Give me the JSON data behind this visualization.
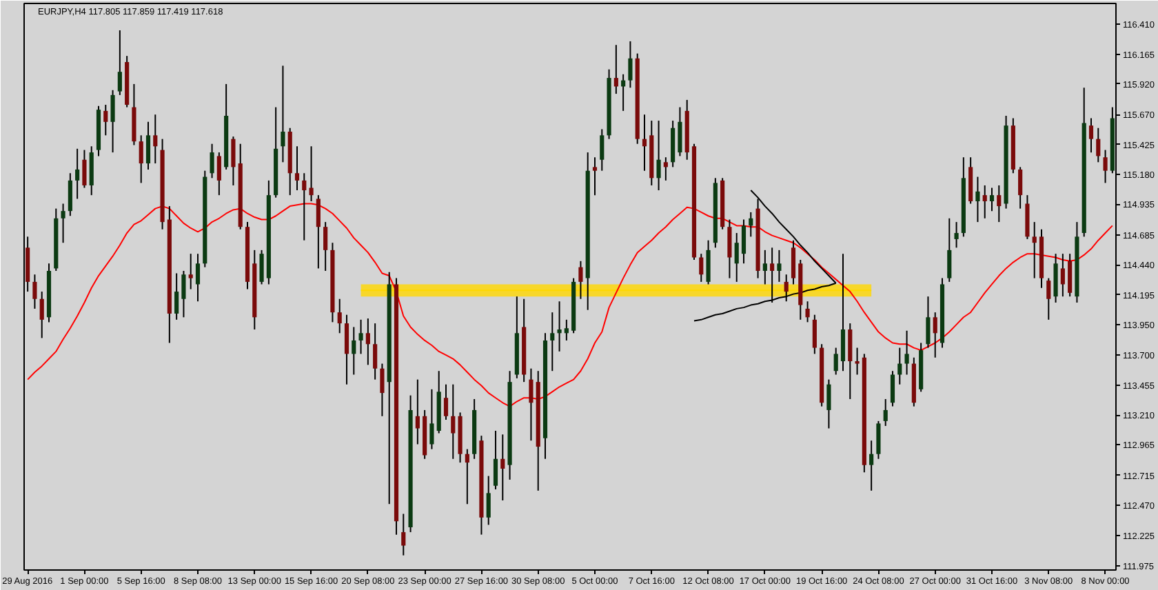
{
  "chart_data": {
    "type": "candlestick",
    "title": "EURJPY,H4 117.805 117.859 117.419 117.618",
    "categories": [
      "29 Aug 2016",
      null,
      null,
      null,
      null,
      null,
      null,
      null,
      "1 Sep 00:00",
      null,
      null,
      null,
      null,
      null,
      null,
      null,
      "5 Sep 16:00",
      null,
      null,
      null,
      null,
      null,
      null,
      null,
      "8 Sep 08:00",
      null,
      null,
      null,
      null,
      null,
      null,
      null,
      "13 Sep 00:00",
      null,
      null,
      null,
      null,
      null,
      null,
      null,
      "15 Sep 16:00",
      null,
      null,
      null,
      null,
      null,
      null,
      null,
      "20 Sep 08:00",
      null,
      null,
      null,
      null,
      null,
      null,
      null,
      "23 Sep 00:00",
      null,
      null,
      null,
      null,
      null,
      null,
      null,
      "27 Sep 16:00",
      null,
      null,
      null,
      null,
      null,
      null,
      null,
      "30 Sep 08:00",
      null,
      null,
      null,
      null,
      null,
      null,
      null,
      "5 Oct 00:00",
      null,
      null,
      null,
      null,
      null,
      null,
      null,
      "7 Oct 16:00",
      null,
      null,
      null,
      null,
      null,
      null,
      null,
      "12 Oct 08:00",
      null,
      null,
      null,
      null,
      null,
      null,
      null,
      "17 Oct 00:00",
      null,
      null,
      null,
      null,
      null,
      null,
      null,
      "19 Oct 16:00",
      null,
      null,
      null,
      null,
      null,
      null,
      null,
      "24 Oct 08:00",
      null,
      null,
      null,
      null,
      null,
      null,
      null,
      "27 Oct 00:00",
      null,
      null,
      null,
      null,
      null,
      null,
      null,
      "31 Oct 16:00",
      null,
      null,
      null,
      null,
      null,
      null,
      null,
      "3 Nov 08:00",
      null,
      null,
      null,
      null,
      null,
      null,
      null,
      "8 Nov 00:00",
      null
    ],
    "ohlc": [
      [
        114.58,
        114.67,
        114.22,
        114.3
      ],
      [
        114.3,
        114.36,
        114.08,
        114.16
      ],
      [
        114.16,
        114.22,
        113.84,
        113.99
      ],
      [
        114.01,
        114.45,
        113.97,
        114.39
      ],
      [
        114.41,
        114.9,
        114.39,
        114.82
      ],
      [
        114.82,
        114.94,
        114.62,
        114.88
      ],
      [
        114.88,
        115.19,
        114.84,
        115.13
      ],
      [
        115.13,
        115.39,
        114.98,
        115.22
      ],
      [
        115.3,
        115.38,
        115.07,
        115.09
      ],
      [
        115.09,
        115.41,
        115.01,
        115.36
      ],
      [
        115.38,
        115.74,
        115.33,
        115.71
      ],
      [
        115.7,
        115.75,
        115.5,
        115.61
      ],
      [
        115.61,
        115.87,
        115.36,
        115.83
      ],
      [
        115.86,
        116.36,
        115.83,
        116.02
      ],
      [
        116.1,
        116.15,
        115.73,
        115.75
      ],
      [
        115.73,
        115.92,
        115.42,
        115.45
      ],
      [
        115.45,
        115.5,
        115.11,
        115.27
      ],
      [
        115.27,
        115.61,
        115.22,
        115.5
      ],
      [
        115.5,
        115.67,
        115.27,
        115.41
      ],
      [
        115.38,
        115.47,
        114.73,
        114.79
      ],
      [
        114.81,
        114.92,
        113.8,
        114.04
      ],
      [
        114.04,
        114.37,
        113.99,
        114.22
      ],
      [
        114.16,
        114.39,
        114.01,
        114.36
      ],
      [
        114.36,
        114.53,
        114.24,
        114.33
      ],
      [
        114.28,
        114.53,
        114.14,
        114.45
      ],
      [
        114.45,
        115.21,
        114.42,
        115.16
      ],
      [
        115.19,
        115.43,
        115.15,
        115.36
      ],
      [
        115.33,
        115.36,
        115.01,
        115.13
      ],
      [
        115.24,
        115.92,
        115.22,
        115.66
      ],
      [
        115.47,
        115.49,
        115.09,
        115.24
      ],
      [
        115.27,
        115.43,
        114.73,
        114.75
      ],
      [
        114.75,
        114.79,
        114.24,
        114.3
      ],
      [
        114.45,
        114.56,
        113.91,
        114.01
      ],
      [
        114.3,
        114.56,
        114.28,
        114.53
      ],
      [
        114.33,
        115.13,
        114.28,
        115.01
      ],
      [
        115.01,
        115.73,
        114.99,
        115.39
      ],
      [
        115.41,
        116.07,
        115.28,
        115.53
      ],
      [
        115.53,
        115.56,
        115.01,
        115.19
      ],
      [
        115.19,
        115.41,
        115.05,
        115.13
      ],
      [
        115.13,
        115.19,
        114.64,
        115.05
      ],
      [
        115.07,
        115.41,
        114.96,
        115.01
      ],
      [
        114.98,
        115.01,
        114.41,
        114.75
      ],
      [
        114.75,
        114.79,
        114.39,
        114.56
      ],
      [
        114.56,
        114.62,
        113.97,
        114.05
      ],
      [
        114.05,
        114.16,
        113.88,
        113.96
      ],
      [
        113.96,
        114.03,
        113.46,
        113.71
      ],
      [
        113.71,
        113.93,
        113.54,
        113.82
      ],
      [
        113.82,
        113.99,
        113.71,
        113.88
      ],
      [
        113.88,
        114.0,
        113.62,
        113.79
      ],
      [
        113.79,
        113.96,
        113.5,
        113.59
      ],
      [
        113.59,
        113.63,
        113.2,
        113.39
      ],
      [
        113.48,
        114.38,
        112.48,
        114.28
      ],
      [
        114.28,
        114.33,
        112.23,
        112.34
      ],
      [
        112.25,
        112.4,
        112.06,
        112.14
      ],
      [
        112.29,
        113.37,
        112.25,
        113.25
      ],
      [
        113.2,
        113.5,
        112.97,
        113.1
      ],
      [
        113.2,
        113.25,
        112.85,
        112.88
      ],
      [
        112.97,
        113.42,
        112.93,
        113.14
      ],
      [
        113.08,
        113.57,
        113.06,
        113.4
      ],
      [
        113.35,
        113.46,
        113.17,
        113.2
      ],
      [
        113.2,
        113.46,
        112.85,
        113.06
      ],
      [
        113.2,
        113.23,
        112.82,
        112.89
      ],
      [
        112.89,
        112.93,
        112.48,
        112.82
      ],
      [
        112.89,
        113.34,
        112.85,
        113.25
      ],
      [
        113.0,
        113.04,
        112.23,
        112.37
      ],
      [
        112.37,
        112.71,
        112.31,
        112.57
      ],
      [
        112.63,
        113.08,
        112.6,
        112.85
      ],
      [
        112.85,
        113.05,
        112.51,
        112.77
      ],
      [
        112.8,
        113.57,
        112.68,
        113.48
      ],
      [
        113.54,
        114.18,
        113.51,
        113.88
      ],
      [
        113.93,
        114.16,
        113.48,
        113.54
      ],
      [
        113.5,
        113.59,
        113.0,
        113.31
      ],
      [
        113.48,
        113.57,
        112.59,
        112.95
      ],
      [
        113.02,
        113.88,
        112.85,
        113.82
      ],
      [
        113.82,
        114.05,
        113.57,
        113.88
      ],
      [
        113.88,
        114.14,
        113.73,
        113.91
      ],
      [
        113.88,
        113.99,
        113.82,
        113.92
      ],
      [
        113.9,
        114.33,
        113.88,
        114.3
      ],
      [
        114.42,
        114.47,
        114.16,
        114.3
      ],
      [
        114.33,
        115.36,
        114.07,
        115.21
      ],
      [
        115.24,
        115.32,
        115.01,
        115.21
      ],
      [
        115.3,
        115.55,
        115.21,
        115.5
      ],
      [
        115.5,
        116.04,
        115.47,
        115.97
      ],
      [
        115.97,
        116.24,
        115.84,
        115.9
      ],
      [
        115.9,
        116.0,
        115.7,
        115.95
      ],
      [
        115.95,
        116.27,
        115.89,
        116.13
      ],
      [
        116.13,
        116.17,
        115.43,
        115.47
      ],
      [
        115.47,
        115.67,
        115.21,
        115.41
      ],
      [
        115.5,
        115.62,
        115.09,
        115.15
      ],
      [
        115.15,
        115.62,
        115.05,
        115.3
      ],
      [
        115.28,
        115.32,
        115.13,
        115.24
      ],
      [
        115.28,
        115.62,
        115.24,
        115.56
      ],
      [
        115.36,
        115.73,
        115.33,
        115.61
      ],
      [
        115.7,
        115.79,
        115.3,
        115.36
      ],
      [
        115.41,
        115.43,
        114.48,
        114.5
      ],
      [
        114.5,
        114.53,
        114.3,
        114.36
      ],
      [
        114.3,
        114.64,
        114.28,
        114.56
      ],
      [
        114.62,
        115.15,
        114.58,
        115.11
      ],
      [
        115.13,
        115.15,
        114.73,
        114.75
      ],
      [
        114.75,
        114.81,
        114.33,
        114.5
      ],
      [
        114.45,
        114.7,
        114.3,
        114.62
      ],
      [
        114.53,
        114.81,
        114.45,
        114.76
      ],
      [
        114.76,
        114.87,
        114.67,
        114.82
      ],
      [
        114.9,
        114.98,
        114.33,
        114.39
      ],
      [
        114.39,
        114.56,
        114.28,
        114.45
      ],
      [
        114.45,
        114.58,
        114.13,
        114.39
      ],
      [
        114.39,
        114.56,
        114.3,
        114.45
      ],
      [
        114.3,
        114.36,
        114.14,
        114.22
      ],
      [
        114.58,
        114.64,
        114.28,
        114.33
      ],
      [
        114.45,
        114.48,
        113.99,
        114.11
      ],
      [
        114.08,
        114.14,
        113.97,
        114.01
      ],
      [
        113.99,
        114.03,
        113.71,
        113.76
      ],
      [
        113.76,
        113.79,
        113.28,
        113.31
      ],
      [
        113.25,
        113.5,
        113.1,
        113.46
      ],
      [
        113.57,
        113.76,
        113.54,
        113.71
      ],
      [
        113.65,
        114.53,
        113.57,
        113.91
      ],
      [
        113.91,
        113.96,
        113.34,
        113.65
      ],
      [
        113.65,
        113.76,
        113.54,
        113.63
      ],
      [
        113.68,
        113.71,
        112.74,
        112.8
      ],
      [
        112.8,
        113.0,
        112.59,
        112.89
      ],
      [
        112.89,
        113.16,
        112.85,
        113.14
      ],
      [
        113.16,
        113.34,
        113.12,
        113.25
      ],
      [
        113.31,
        113.57,
        113.28,
        113.54
      ],
      [
        113.54,
        113.76,
        113.46,
        113.63
      ],
      [
        113.63,
        113.9,
        113.54,
        113.71
      ],
      [
        113.63,
        113.68,
        113.28,
        113.31
      ],
      [
        113.42,
        113.8,
        113.4,
        113.74
      ],
      [
        113.79,
        114.18,
        113.76,
        114.01
      ],
      [
        114.01,
        114.05,
        113.68,
        113.88
      ],
      [
        113.8,
        114.33,
        113.76,
        114.28
      ],
      [
        114.33,
        114.82,
        114.3,
        114.56
      ],
      [
        114.65,
        114.79,
        114.58,
        114.7
      ],
      [
        114.7,
        115.32,
        114.67,
        115.15
      ],
      [
        115.24,
        115.32,
        114.94,
        114.96
      ],
      [
        114.96,
        115.16,
        114.79,
        115.04
      ],
      [
        115.01,
        115.09,
        114.82,
        114.96
      ],
      [
        114.96,
        115.07,
        114.88,
        115.01
      ],
      [
        115.01,
        115.09,
        114.79,
        114.92
      ],
      [
        114.94,
        115.66,
        114.9,
        115.58
      ],
      [
        115.58,
        115.64,
        115.19,
        115.22
      ],
      [
        115.22,
        115.24,
        114.9,
        115.01
      ],
      [
        114.94,
        115.01,
        114.65,
        114.67
      ],
      [
        114.67,
        114.79,
        114.33,
        114.62
      ],
      [
        114.67,
        114.73,
        114.25,
        114.33
      ],
      [
        114.31,
        114.33,
        113.99,
        114.16
      ],
      [
        114.18,
        114.53,
        114.13,
        114.45
      ],
      [
        114.41,
        114.53,
        114.18,
        114.28
      ],
      [
        114.47,
        114.53,
        114.18,
        114.21
      ],
      [
        114.18,
        114.79,
        114.13,
        114.67
      ],
      [
        114.7,
        115.89,
        114.67,
        115.6
      ],
      [
        115.58,
        115.64,
        115.36,
        115.47
      ],
      [
        115.47,
        115.56,
        115.28,
        115.33
      ],
      [
        115.32,
        115.38,
        115.11,
        115.21
      ],
      [
        115.21,
        115.73,
        115.19,
        115.64
      ]
    ],
    "colors": [
      "#7a0a0a",
      "#7a0a0a",
      "#7a0a0a",
      "#0b3a12",
      "#0b3a12",
      "#0b3a12",
      "#0b3a12",
      "#0b3a12",
      "#7a0a0a",
      "#0b3a12",
      "#0b3a12",
      "#7a0a0a",
      "#0b3a12",
      "#0b3a12",
      "#7a0a0a",
      "#7a0a0a",
      "#7a0a0a",
      "#0b3a12",
      "#7a0a0a",
      "#7a0a0a",
      "#7a0a0a",
      "#0b3a12",
      "#0b3a12",
      "#7a0a0a",
      "#0b3a12",
      "#0b3a12",
      "#0b3a12",
      "#7a0a0a",
      "#0b3a12",
      "#7a0a0a",
      "#7a0a0a",
      "#7a0a0a",
      "#7a0a0a",
      "#0b3a12",
      "#0b3a12",
      "#0b3a12",
      "#0b3a12",
      "#7a0a0a",
      "#7a0a0a",
      "#7a0a0a",
      "#7a0a0a",
      "#7a0a0a",
      "#7a0a0a",
      "#7a0a0a",
      "#7a0a0a",
      "#7a0a0a",
      "#0b3a12",
      "#0b3a12",
      "#7a0a0a",
      "#7a0a0a",
      "#7a0a0a",
      "#0b3a12",
      "#7a0a0a",
      "#7a0a0a",
      "#0b3a12",
      "#7a0a0a",
      "#7a0a0a",
      "#0b3a12",
      "#0b3a12",
      "#7a0a0a",
      "#7a0a0a",
      "#7a0a0a",
      "#7a0a0a",
      "#0b3a12",
      "#7a0a0a",
      "#0b3a12",
      "#0b3a12",
      "#7a0a0a",
      "#0b3a12",
      "#0b3a12",
      "#7a0a0a",
      "#7a0a0a",
      "#7a0a0a",
      "#0b3a12",
      "#0b3a12",
      "#0b3a12",
      "#0b3a12",
      "#0b3a12",
      "#7a0a0a",
      "#0b3a12",
      "#7a0a0a",
      "#0b3a12",
      "#0b3a12",
      "#7a0a0a",
      "#0b3a12",
      "#0b3a12",
      "#7a0a0a",
      "#7a0a0a",
      "#7a0a0a",
      "#0b3a12",
      "#7a0a0a",
      "#0b3a12",
      "#0b3a12",
      "#7a0a0a",
      "#7a0a0a",
      "#7a0a0a",
      "#0b3a12",
      "#0b3a12",
      "#7a0a0a",
      "#7a0a0a",
      "#0b3a12",
      "#0b3a12",
      "#0b3a12",
      "#7a0a0a",
      "#0b3a12",
      "#7a0a0a",
      "#0b3a12",
      "#7a0a0a",
      "#7a0a0a",
      "#7a0a0a",
      "#7a0a0a",
      "#7a0a0a",
      "#7a0a0a",
      "#0b3a12",
      "#0b3a12",
      "#0b3a12",
      "#7a0a0a",
      "#7a0a0a",
      "#7a0a0a",
      "#0b3a12",
      "#0b3a12",
      "#0b3a12",
      "#0b3a12",
      "#0b3a12",
      "#0b3a12",
      "#7a0a0a",
      "#0b3a12",
      "#0b3a12",
      "#7a0a0a",
      "#0b3a12",
      "#0b3a12",
      "#0b3a12",
      "#0b3a12",
      "#7a0a0a",
      "#0b3a12",
      "#7a0a0a",
      "#0b3a12",
      "#7a0a0a",
      "#0b3a12",
      "#7a0a0a",
      "#7a0a0a",
      "#7a0a0a",
      "#7a0a0a",
      "#7a0a0a",
      "#7a0a0a",
      "#0b3a12",
      "#7a0a0a",
      "#7a0a0a",
      "#0b3a12",
      "#0b3a12",
      "#7a0a0a",
      "#7a0a0a",
      "#7a0a0a",
      "#0b3a12"
    ],
    "series": [
      {
        "type": "line",
        "color": "#ffd700",
        "values": [
          null,
          null,
          null,
          null,
          null,
          null,
          null,
          null,
          null,
          null,
          null,
          null,
          null,
          null,
          null,
          null,
          null,
          null,
          null,
          null,
          null,
          null,
          null,
          null,
          null,
          null,
          null,
          null,
          null,
          null,
          null,
          null,
          null,
          null,
          null,
          null,
          null,
          null,
          null,
          null,
          null,
          null,
          null,
          null,
          null,
          null,
          null,
          114.23,
          114.23,
          114.23,
          114.23,
          114.23,
          114.23,
          114.23,
          114.23,
          114.23,
          114.23,
          114.23,
          114.23,
          114.23,
          114.23,
          114.23,
          114.23,
          114.23,
          114.23,
          114.23,
          114.23,
          114.23,
          114.23,
          114.23,
          114.23,
          114.23,
          114.23,
          114.23,
          114.23,
          114.23,
          114.23,
          114.23,
          114.23,
          114.23,
          114.23,
          114.23,
          114.23,
          114.23,
          114.23,
          114.23,
          114.23,
          114.23,
          114.23,
          114.23,
          114.23,
          114.23,
          114.23,
          114.23,
          114.23,
          114.23,
          114.23,
          114.23,
          114.23,
          114.23,
          114.23,
          114.23,
          114.23,
          114.23,
          114.23,
          114.23,
          114.23,
          114.23,
          114.23,
          114.23,
          114.23,
          114.23,
          114.23,
          114.23,
          114.23,
          114.23,
          114.23,
          114.23,
          114.23,
          114.23,
          null,
          null,
          null,
          null,
          null,
          null,
          null,
          null,
          null,
          null,
          null,
          null,
          null,
          null,
          null,
          null,
          null,
          null,
          null,
          null,
          null,
          null,
          null,
          null,
          null,
          null,
          null,
          null,
          null,
          null,
          null,
          null,
          null,
          null
        ],
        "lower": [
          null,
          null,
          null,
          null,
          null,
          null,
          null,
          null,
          null,
          null,
          null,
          null,
          null,
          null,
          null,
          null,
          null,
          null,
          null,
          null,
          null,
          null,
          null,
          null,
          null,
          null,
          null,
          null,
          null,
          null,
          null,
          null,
          null,
          null,
          null,
          null,
          null,
          null,
          null,
          null,
          null,
          null,
          null,
          null,
          null,
          null,
          null,
          114.18,
          114.18,
          114.18,
          114.18,
          114.18,
          114.18,
          114.18,
          114.18,
          114.18,
          114.18,
          114.18,
          114.18,
          114.18,
          114.18,
          114.18,
          114.18,
          114.18,
          114.18,
          114.18,
          114.18,
          114.18,
          114.18,
          114.18,
          114.18,
          114.18,
          114.18,
          114.18,
          114.18,
          114.18,
          114.18,
          114.18,
          114.18,
          114.18,
          114.18,
          114.18,
          114.18,
          114.18,
          114.18,
          114.18,
          114.18,
          114.18,
          114.18,
          114.18,
          114.18,
          114.18,
          114.18,
          114.18,
          114.18,
          114.18,
          114.18,
          114.18,
          114.18,
          114.18,
          114.18,
          114.18,
          114.18,
          114.18,
          114.18,
          114.18,
          114.18,
          114.18,
          114.18,
          114.18,
          114.18,
          114.18,
          114.18,
          114.18,
          114.18,
          114.18,
          114.18,
          114.18,
          114.18,
          114.18,
          null,
          null,
          null,
          null,
          null,
          null,
          null,
          null,
          null,
          null,
          null,
          null,
          null,
          null,
          null,
          null,
          null,
          null,
          null,
          null,
          null,
          null,
          null,
          null,
          null,
          null,
          null,
          null,
          null,
          null,
          null,
          null,
          null,
          null
        ],
        "upper": [
          null,
          null,
          null,
          null,
          null,
          null,
          null,
          null,
          null,
          null,
          null,
          null,
          null,
          null,
          null,
          null,
          null,
          null,
          null,
          null,
          null,
          null,
          null,
          null,
          null,
          null,
          null,
          null,
          null,
          null,
          null,
          null,
          null,
          null,
          null,
          null,
          null,
          null,
          null,
          null,
          null,
          null,
          null,
          null,
          null,
          null,
          null,
          114.28,
          114.28,
          114.28,
          114.28,
          114.28,
          114.28,
          114.28,
          114.28,
          114.28,
          114.28,
          114.28,
          114.28,
          114.28,
          114.28,
          114.28,
          114.28,
          114.28,
          114.28,
          114.28,
          114.28,
          114.28,
          114.28,
          114.28,
          114.28,
          114.28,
          114.28,
          114.28,
          114.28,
          114.28,
          114.28,
          114.28,
          114.28,
          114.28,
          114.28,
          114.28,
          114.28,
          114.28,
          114.28,
          114.28,
          114.28,
          114.28,
          114.28,
          114.28,
          114.28,
          114.28,
          114.28,
          114.28,
          114.28,
          114.28,
          114.28,
          114.28,
          114.28,
          114.28,
          114.28,
          114.28,
          114.28,
          114.28,
          114.28,
          114.28,
          114.28,
          114.28,
          114.28,
          114.28,
          114.28,
          114.28,
          114.28,
          114.28,
          114.28,
          114.28,
          114.28,
          114.28,
          114.28,
          114.28,
          null,
          null,
          null,
          null,
          null,
          null,
          null,
          null,
          null,
          null,
          null,
          null,
          null,
          null,
          null,
          null,
          null,
          null,
          null,
          null,
          null,
          null,
          null,
          null,
          null,
          null,
          null,
          null,
          null,
          null,
          null,
          null,
          null,
          null
        ]
      },
      {
        "type": "line",
        "color": "#ff0000",
        "values": [
          113.5,
          113.56,
          113.61,
          113.67,
          113.73,
          113.83,
          113.92,
          114.02,
          114.13,
          114.25,
          114.35,
          114.43,
          114.51,
          114.6,
          114.7,
          114.77,
          114.8,
          114.85,
          114.9,
          114.92,
          114.9,
          114.84,
          114.78,
          114.74,
          114.71,
          114.74,
          114.79,
          114.82,
          114.86,
          114.89,
          114.9,
          114.86,
          114.83,
          114.81,
          114.81,
          114.84,
          114.88,
          114.92,
          114.93,
          114.94,
          114.94,
          114.93,
          114.9,
          114.86,
          114.8,
          114.74,
          114.66,
          114.6,
          114.54,
          114.46,
          114.37,
          114.35,
          114.22,
          114.02,
          113.93,
          113.87,
          113.82,
          113.78,
          113.73,
          113.7,
          113.67,
          113.62,
          113.56,
          113.5,
          113.45,
          113.39,
          113.35,
          113.31,
          113.28,
          113.32,
          113.35,
          113.35,
          113.34,
          113.36,
          113.4,
          113.44,
          113.47,
          113.5,
          113.57,
          113.67,
          113.8,
          113.89,
          114.09,
          114.21,
          114.33,
          114.44,
          114.54,
          114.59,
          114.64,
          114.7,
          114.75,
          114.81,
          114.86,
          114.91,
          114.9,
          114.87,
          114.84,
          114.82,
          114.82,
          114.79,
          114.76,
          114.76,
          114.75,
          114.75,
          114.71,
          114.68,
          114.66,
          114.64,
          114.62,
          114.58,
          114.53,
          114.48,
          114.42,
          114.37,
          114.32,
          114.27,
          114.22,
          114.14,
          114.05,
          113.97,
          113.89,
          113.84,
          113.8,
          113.79,
          113.79,
          113.76,
          113.74,
          113.77,
          113.8,
          113.84,
          113.89,
          113.95,
          114.01,
          114.05,
          114.13,
          114.21,
          114.28,
          114.35,
          114.41,
          114.46,
          114.5,
          114.53,
          114.53,
          114.52,
          114.51,
          114.5,
          114.48,
          114.47,
          114.48,
          114.52,
          114.57,
          114.64,
          114.7,
          114.76
        ]
      },
      {
        "type": "line",
        "color": "#000000",
        "values": [
          null,
          null,
          null,
          null,
          null,
          null,
          null,
          null,
          null,
          null,
          null,
          null,
          null,
          null,
          null,
          null,
          null,
          null,
          null,
          null,
          null,
          null,
          null,
          null,
          null,
          null,
          null,
          null,
          null,
          null,
          null,
          null,
          null,
          null,
          null,
          null,
          null,
          null,
          null,
          null,
          null,
          null,
          null,
          null,
          null,
          null,
          null,
          null,
          null,
          null,
          null,
          null,
          null,
          null,
          null,
          null,
          null,
          null,
          null,
          null,
          null,
          null,
          null,
          null,
          null,
          null,
          null,
          null,
          null,
          null,
          null,
          null,
          null,
          null,
          null,
          null,
          null,
          null,
          null,
          null,
          null,
          null,
          null,
          null,
          null,
          null,
          null,
          null,
          null,
          null,
          null,
          null,
          null,
          null,
          null,
          null,
          null,
          null,
          null,
          null,
          null,
          null,
          115.05,
          114.99,
          114.92,
          114.86,
          114.79,
          114.73,
          114.67,
          114.6,
          114.54,
          114.47,
          114.41,
          114.35,
          114.29,
          null,
          null,
          null,
          null,
          null,
          null,
          null,
          null,
          null,
          null,
          null,
          null,
          null,
          null,
          null,
          null,
          null,
          null,
          null,
          null,
          null,
          null,
          null,
          null,
          null,
          null,
          null,
          null,
          null,
          null,
          null,
          null,
          null,
          null,
          null,
          null,
          null,
          null,
          null
        ]
      },
      {
        "type": "line",
        "color": "#000000",
        "values": [
          null,
          null,
          null,
          null,
          null,
          null,
          null,
          null,
          null,
          null,
          null,
          null,
          null,
          null,
          null,
          null,
          null,
          null,
          null,
          null,
          null,
          null,
          null,
          null,
          null,
          null,
          null,
          null,
          null,
          null,
          null,
          null,
          null,
          null,
          null,
          null,
          null,
          null,
          null,
          null,
          null,
          null,
          null,
          null,
          null,
          null,
          null,
          null,
          null,
          null,
          null,
          null,
          null,
          null,
          null,
          null,
          null,
          null,
          null,
          null,
          null,
          null,
          null,
          null,
          null,
          null,
          null,
          null,
          null,
          null,
          null,
          null,
          null,
          null,
          null,
          null,
          null,
          null,
          null,
          null,
          null,
          null,
          null,
          null,
          null,
          null,
          null,
          null,
          null,
          null,
          null,
          null,
          null,
          null,
          113.98,
          113.99,
          114.01,
          114.03,
          114.04,
          114.06,
          114.08,
          114.09,
          114.11,
          114.12,
          114.14,
          114.15,
          114.17,
          114.18,
          114.2,
          114.21,
          114.23,
          114.24,
          114.26,
          114.27,
          114.29,
          null,
          null,
          null,
          null,
          null,
          null,
          null,
          null,
          null,
          null,
          null,
          null,
          null,
          null,
          null,
          null,
          null,
          null,
          null,
          null,
          null,
          null,
          null,
          null,
          null,
          null,
          null,
          null,
          null,
          null,
          null,
          null,
          null,
          null,
          null,
          null,
          null,
          null,
          null
        ]
      }
    ],
    "ylim": [
      111.94,
      116.58
    ],
    "yticks": [
      {
        "value": 116.41,
        "label": "116.410"
      },
      116.165,
      {
        "value": 115.92,
        "label": "115.920"
      },
      {
        "value": 115.67,
        "label": "115.670"
      },
      115.425,
      {
        "value": 115.18,
        "label": "115.180"
      },
      114.935,
      114.685,
      {
        "value": 114.44,
        "label": "114.440"
      },
      114.195,
      {
        "value": 113.95,
        "label": "113.950"
      },
      {
        "value": 113.7,
        "label": "113.700"
      },
      113.455,
      {
        "value": 113.21,
        "label": "113.210"
      },
      112.965,
      112.715,
      {
        "value": 112.47,
        "label": "112.470"
      },
      112.225,
      111.975
    ],
    "grid": false
  }
}
